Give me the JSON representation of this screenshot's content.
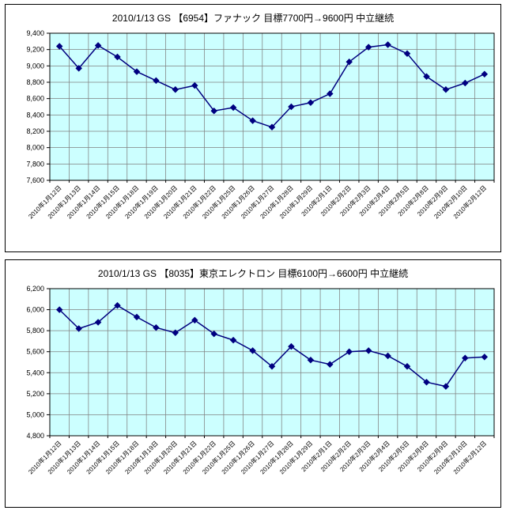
{
  "chart_data": [
    {
      "type": "line",
      "title": "2010/1/13 GS 【6954】ファナック 目標7700円→9600円 中立継続",
      "categories": [
        "2010年1月12日",
        "2010年1月13日",
        "2010年1月14日",
        "2010年1月15日",
        "2010年1月18日",
        "2010年1月19日",
        "2010年1月20日",
        "2010年1月21日",
        "2010年1月22日",
        "2010年1月25日",
        "2010年1月26日",
        "2010年1月27日",
        "2010年1月28日",
        "2010年1月29日",
        "2010年2月1日",
        "2010年2月2日",
        "2010年2月3日",
        "2010年2月4日",
        "2010年2月5日",
        "2010年2月8日",
        "2010年2月9日",
        "2010年2月10日",
        "2010年2月12日"
      ],
      "values": [
        9240,
        8970,
        9250,
        9110,
        8930,
        8820,
        8710,
        8760,
        8450,
        8490,
        8330,
        8250,
        8500,
        8550,
        8660,
        9050,
        9230,
        9260,
        9150,
        8870,
        8710,
        8790,
        8900
      ],
      "xlabel": "",
      "ylabel": "",
      "ylim": [
        7600,
        9400
      ],
      "ytick_step": 200,
      "grid": true,
      "legend": "none",
      "plot_bg": "#ccffff",
      "series_color": "#000080",
      "grid_color": "#808080"
    },
    {
      "type": "line",
      "title": "2010/1/13 GS 【8035】東京エレクトロン 目標6100円→6600円 中立継続",
      "categories": [
        "2010年1月12日",
        "2010年1月13日",
        "2010年1月14日",
        "2010年1月15日",
        "2010年1月18日",
        "2010年1月19日",
        "2010年1月20日",
        "2010年1月21日",
        "2010年1月22日",
        "2010年1月25日",
        "2010年1月26日",
        "2010年1月27日",
        "2010年1月28日",
        "2010年1月29日",
        "2010年2月1日",
        "2010年2月2日",
        "2010年2月3日",
        "2010年2月4日",
        "2010年2月5日",
        "2010年2月8日",
        "2010年2月9日",
        "2010年2月10日",
        "2010年2月12日"
      ],
      "values": [
        6000,
        5820,
        5880,
        6040,
        5930,
        5830,
        5780,
        5900,
        5770,
        5710,
        5610,
        5460,
        5650,
        5520,
        5480,
        5600,
        5610,
        5560,
        5460,
        5310,
        5270,
        5540,
        5550
      ],
      "xlabel": "",
      "ylabel": "",
      "ylim": [
        4800,
        6200
      ],
      "ytick_step": 200,
      "grid": true,
      "legend": "none",
      "plot_bg": "#ccffff",
      "series_color": "#000080",
      "grid_color": "#808080"
    }
  ]
}
